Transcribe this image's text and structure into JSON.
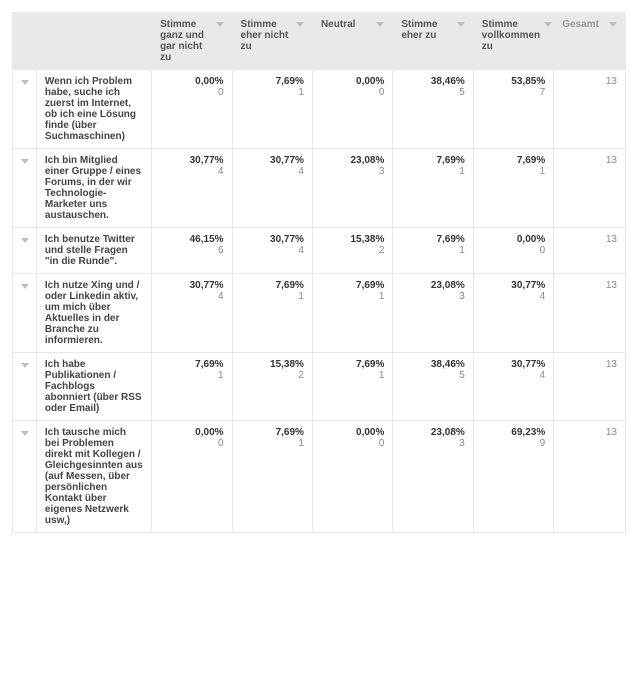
{
  "columns": [
    {
      "label": "Stimme ganz und gar nicht zu"
    },
    {
      "label": "Stimme eher nicht zu"
    },
    {
      "label": "Neutral"
    },
    {
      "label": "Stimme eher zu"
    },
    {
      "label": "Stimme vollkommen zu"
    }
  ],
  "total_label": "Gesamt",
  "rows": [
    {
      "label": "Wenn ich Problem habe, suche ich zuerst im Internet, ob ich eine Lösung finde (über Suchmaschinen)",
      "cells": [
        {
          "pct": "0,00%",
          "cnt": "0"
        },
        {
          "pct": "7,69%",
          "cnt": "1"
        },
        {
          "pct": "0,00%",
          "cnt": "0"
        },
        {
          "pct": "38,46%",
          "cnt": "5"
        },
        {
          "pct": "53,85%",
          "cnt": "7"
        }
      ],
      "total": "13"
    },
    {
      "label": "Ich bin Mitglied einer Gruppe / eines Forums, in der wir Technologie-Marketer uns austauschen.",
      "cells": [
        {
          "pct": "30,77%",
          "cnt": "4"
        },
        {
          "pct": "30,77%",
          "cnt": "4"
        },
        {
          "pct": "23,08%",
          "cnt": "3"
        },
        {
          "pct": "7,69%",
          "cnt": "1"
        },
        {
          "pct": "7,69%",
          "cnt": "1"
        }
      ],
      "total": "13"
    },
    {
      "label": "Ich benutze Twitter und stelle Fragen \"in die Runde\".",
      "cells": [
        {
          "pct": "46,15%",
          "cnt": "6"
        },
        {
          "pct": "30,77%",
          "cnt": "4"
        },
        {
          "pct": "15,38%",
          "cnt": "2"
        },
        {
          "pct": "7,69%",
          "cnt": "1"
        },
        {
          "pct": "0,00%",
          "cnt": "0"
        }
      ],
      "total": "13"
    },
    {
      "label": "Ich nutze Xing und / oder Linkedin aktiv, um mich über Aktuelles in der Branche zu informieren.",
      "cells": [
        {
          "pct": "30,77%",
          "cnt": "4"
        },
        {
          "pct": "7,69%",
          "cnt": "1"
        },
        {
          "pct": "7,69%",
          "cnt": "1"
        },
        {
          "pct": "23,08%",
          "cnt": "3"
        },
        {
          "pct": "30,77%",
          "cnt": "4"
        }
      ],
      "total": "13"
    },
    {
      "label": "Ich habe Publikationen / Fachblogs abonniert (über RSS oder Email)",
      "cells": [
        {
          "pct": "7,69%",
          "cnt": "1"
        },
        {
          "pct": "15,38%",
          "cnt": "2"
        },
        {
          "pct": "7,69%",
          "cnt": "1"
        },
        {
          "pct": "38,46%",
          "cnt": "5"
        },
        {
          "pct": "30,77%",
          "cnt": "4"
        }
      ],
      "total": "13"
    },
    {
      "label": "Ich tausche mich bei Problemen direkt mit Kollegen / Gleichgesinnten aus (auf Messen, über persönlichen Kontakt über eigenes Netzwerk usw,)",
      "cells": [
        {
          "pct": "0,00%",
          "cnt": "0"
        },
        {
          "pct": "7,69%",
          "cnt": "1"
        },
        {
          "pct": "0,00%",
          "cnt": "0"
        },
        {
          "pct": "23,08%",
          "cnt": "3"
        },
        {
          "pct": "69,23%",
          "cnt": "9"
        }
      ],
      "total": "13"
    }
  ]
}
